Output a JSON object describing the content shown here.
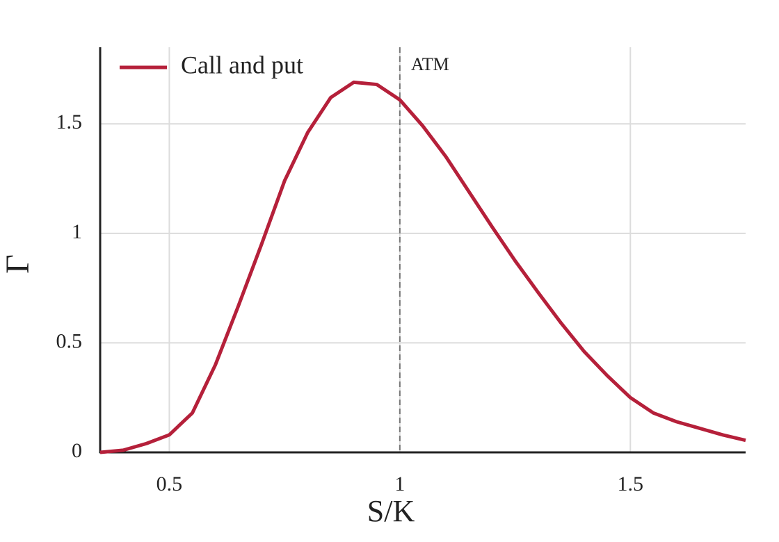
{
  "chart_data": {
    "type": "line",
    "x_label": "S/K",
    "y_label": "Γ",
    "x": [
      0.35,
      0.4,
      0.45,
      0.5,
      0.55,
      0.6,
      0.65,
      0.7,
      0.75,
      0.8,
      0.85,
      0.9,
      0.95,
      1.0,
      1.05,
      1.1,
      1.15,
      1.2,
      1.25,
      1.3,
      1.35,
      1.4,
      1.45,
      1.5,
      1.55,
      1.6,
      1.65,
      1.7,
      1.75
    ],
    "series": [
      {
        "name": "Call and put",
        "color": "#b5203a",
        "values": [
          0.0,
          0.01,
          0.04,
          0.08,
          0.18,
          0.4,
          0.67,
          0.95,
          1.24,
          1.46,
          1.62,
          1.69,
          1.68,
          1.61,
          1.49,
          1.35,
          1.19,
          1.03,
          0.875,
          0.73,
          0.59,
          0.46,
          0.35,
          0.25,
          0.18,
          0.14,
          0.11,
          0.08,
          0.055
        ]
      }
    ],
    "annotations": [
      {
        "text": "ATM",
        "x": 1
      }
    ],
    "xlim": [
      0.35,
      1.75
    ],
    "ylim": [
      0,
      1.85
    ],
    "xticks": [
      0.5,
      1,
      1.5
    ],
    "yticks": [
      0,
      0.5,
      1,
      1.5
    ],
    "grid": true,
    "legend": "upper left"
  }
}
